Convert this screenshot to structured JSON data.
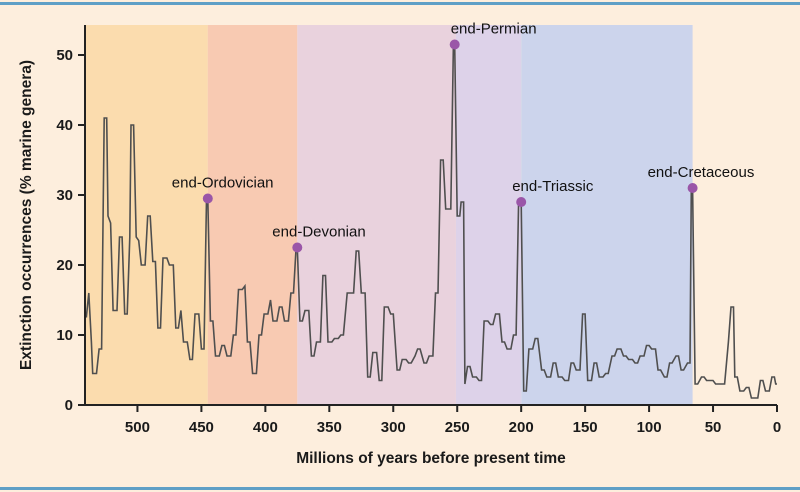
{
  "figure": {
    "background_color": "#fdeedd",
    "border_color": "#5f9fc6"
  },
  "chart_data": {
    "type": "line",
    "title": "",
    "xlabel": "Millions of years before present time",
    "ylabel": "Extinction occurrences (% marine genera)",
    "x_axis": {
      "min": 0,
      "max": 541,
      "reversed": true,
      "ticks": [
        500,
        450,
        400,
        350,
        300,
        250,
        200,
        150,
        100,
        50,
        0
      ]
    },
    "y_axis": {
      "min": 0,
      "max": 54,
      "ticks": [
        0,
        10,
        20,
        30,
        40,
        50
      ]
    },
    "grid": false,
    "legend": "none",
    "line_color": "#4f4f4f",
    "dot_color": "#9a56a8",
    "bands": [
      {
        "name": "cambrian-ordovician",
        "from": 541,
        "to": 445,
        "color": "#fbdcae"
      },
      {
        "name": "silurian-devonian",
        "from": 445,
        "to": 375,
        "color": "#f8cab2"
      },
      {
        "name": "carboniferous-permian",
        "from": 375,
        "to": 251,
        "color": "#e9d2dd"
      },
      {
        "name": "triassic",
        "from": 251,
        "to": 200,
        "color": "#ddd2e9"
      },
      {
        "name": "jurassic-cretaceous",
        "from": 200,
        "to": 66,
        "color": "#ccd4ec"
      }
    ],
    "peaks": [
      {
        "label": "end-Ordovician",
        "ma": 445,
        "pct": 29.5,
        "label_dx": -36,
        "label_dy": -11
      },
      {
        "label": "end-Devonian",
        "ma": 375,
        "pct": 22.5,
        "label_dx": -25,
        "label_dy": -11
      },
      {
        "label": "end-Permian",
        "ma": 252,
        "pct": 51.5,
        "label_dx": -4,
        "label_dy": -11
      },
      {
        "label": "end-Triassic",
        "ma": 200,
        "pct": 29,
        "label_dx": -9,
        "label_dy": -11
      },
      {
        "label": "end-Cretaceous",
        "ma": 66,
        "pct": 31,
        "label_dx": -45,
        "label_dy": -11
      }
    ],
    "series": [
      [
        540,
        12.5
      ],
      [
        538,
        16
      ],
      [
        536,
        9
      ],
      [
        535,
        4.5
      ],
      [
        532,
        4.5
      ],
      [
        530,
        8
      ],
      [
        528,
        8
      ],
      [
        526,
        41
      ],
      [
        524,
        41
      ],
      [
        523,
        27
      ],
      [
        521,
        26
      ],
      [
        519,
        13.5
      ],
      [
        516,
        13.5
      ],
      [
        514,
        24
      ],
      [
        512,
        24
      ],
      [
        510,
        13
      ],
      [
        508,
        13
      ],
      [
        506,
        24
      ],
      [
        505,
        40
      ],
      [
        503,
        40
      ],
      [
        501,
        24
      ],
      [
        499,
        23.5
      ],
      [
        497,
        20
      ],
      [
        494,
        20
      ],
      [
        492,
        27
      ],
      [
        490,
        27
      ],
      [
        488,
        20.5
      ],
      [
        486,
        20.5
      ],
      [
        484,
        11
      ],
      [
        482,
        11
      ],
      [
        480,
        21
      ],
      [
        477,
        21
      ],
      [
        475,
        20
      ],
      [
        472,
        20
      ],
      [
        470,
        11
      ],
      [
        468,
        11
      ],
      [
        466,
        13.5
      ],
      [
        464,
        9
      ],
      [
        461,
        9
      ],
      [
        459,
        6.5
      ],
      [
        457,
        6.5
      ],
      [
        455,
        13
      ],
      [
        452,
        13
      ],
      [
        450,
        8
      ],
      [
        448,
        8
      ],
      [
        446,
        29.5
      ],
      [
        445,
        29.5
      ],
      [
        443,
        12
      ],
      [
        441,
        12
      ],
      [
        439,
        7
      ],
      [
        436,
        7
      ],
      [
        434,
        8.5
      ],
      [
        432,
        8.5
      ],
      [
        430,
        7
      ],
      [
        427,
        7
      ],
      [
        425,
        10
      ],
      [
        423,
        10
      ],
      [
        421,
        16.5
      ],
      [
        418,
        16.5
      ],
      [
        416,
        17
      ],
      [
        414,
        9
      ],
      [
        412,
        9
      ],
      [
        410,
        4.5
      ],
      [
        407,
        4.5
      ],
      [
        405,
        10
      ],
      [
        403,
        10
      ],
      [
        401,
        13
      ],
      [
        398,
        13
      ],
      [
        396,
        15
      ],
      [
        394,
        12
      ],
      [
        391,
        12
      ],
      [
        389,
        14
      ],
      [
        387,
        14
      ],
      [
        385,
        12
      ],
      [
        382,
        12
      ],
      [
        380,
        16
      ],
      [
        378,
        16
      ],
      [
        376,
        22.5
      ],
      [
        375,
        22.5
      ],
      [
        373,
        12
      ],
      [
        371,
        12
      ],
      [
        369,
        13.5
      ],
      [
        366,
        13.5
      ],
      [
        364,
        7
      ],
      [
        362,
        7
      ],
      [
        360,
        9
      ],
      [
        357,
        9
      ],
      [
        355,
        18.5
      ],
      [
        353,
        18.5
      ],
      [
        351,
        9
      ],
      [
        348,
        9
      ],
      [
        346,
        9.5
      ],
      [
        343,
        9.5
      ],
      [
        341,
        10
      ],
      [
        339,
        10
      ],
      [
        336,
        16
      ],
      [
        334,
        16
      ],
      [
        331,
        16
      ],
      [
        329,
        22
      ],
      [
        327,
        22
      ],
      [
        325,
        16
      ],
      [
        322,
        16
      ],
      [
        320,
        4
      ],
      [
        318,
        4
      ],
      [
        316,
        7.5
      ],
      [
        313,
        7.5
      ],
      [
        311,
        3.5
      ],
      [
        309,
        3.5
      ],
      [
        307,
        14
      ],
      [
        304,
        14
      ],
      [
        302,
        13
      ],
      [
        300,
        13
      ],
      [
        297,
        5
      ],
      [
        295,
        5
      ],
      [
        293,
        6.5
      ],
      [
        290,
        6.5
      ],
      [
        288,
        6
      ],
      [
        286,
        6
      ],
      [
        283,
        7
      ],
      [
        281,
        8
      ],
      [
        279,
        8
      ],
      [
        276,
        6
      ],
      [
        274,
        6
      ],
      [
        272,
        7
      ],
      [
        269,
        7
      ],
      [
        267,
        16
      ],
      [
        265,
        16
      ],
      [
        263,
        35
      ],
      [
        261,
        35
      ],
      [
        259,
        28
      ],
      [
        257,
        28
      ],
      [
        255,
        28
      ],
      [
        253,
        51.5
      ],
      [
        252,
        51.5
      ],
      [
        250,
        27
      ],
      [
        248,
        27
      ],
      [
        247,
        29
      ],
      [
        245,
        29
      ],
      [
        244,
        3
      ],
      [
        242,
        5.5
      ],
      [
        240,
        5.5
      ],
      [
        238,
        4
      ],
      [
        235,
        4
      ],
      [
        233,
        3.5
      ],
      [
        231,
        3.5
      ],
      [
        229,
        12
      ],
      [
        226,
        12
      ],
      [
        224,
        11.5
      ],
      [
        222,
        11.5
      ],
      [
        220,
        13
      ],
      [
        217,
        13
      ],
      [
        215,
        9
      ],
      [
        213,
        9
      ],
      [
        211,
        8
      ],
      [
        208,
        8
      ],
      [
        206,
        10
      ],
      [
        204,
        10
      ],
      [
        202,
        29
      ],
      [
        200,
        29
      ],
      [
        198,
        2
      ],
      [
        196,
        2
      ],
      [
        194,
        8
      ],
      [
        191,
        8
      ],
      [
        189,
        9.5
      ],
      [
        187,
        9.5
      ],
      [
        184,
        5
      ],
      [
        182,
        5
      ],
      [
        180,
        4
      ],
      [
        177,
        4
      ],
      [
        175,
        6
      ],
      [
        173,
        6
      ],
      [
        171,
        4
      ],
      [
        168,
        4
      ],
      [
        166,
        3.5
      ],
      [
        163,
        3.5
      ],
      [
        161,
        6
      ],
      [
        159,
        6
      ],
      [
        157,
        5
      ],
      [
        154,
        5
      ],
      [
        152,
        13
      ],
      [
        150,
        13
      ],
      [
        148,
        3.5
      ],
      [
        145,
        3.5
      ],
      [
        143,
        6
      ],
      [
        141,
        6
      ],
      [
        139,
        4
      ],
      [
        136,
        4
      ],
      [
        134,
        4.5
      ],
      [
        132,
        4.5
      ],
      [
        129,
        7
      ],
      [
        127,
        7
      ],
      [
        125,
        8
      ],
      [
        122,
        8
      ],
      [
        120,
        7
      ],
      [
        118,
        7
      ],
      [
        116,
        6.5
      ],
      [
        113,
        6.5
      ],
      [
        111,
        6
      ],
      [
        109,
        6
      ],
      [
        107,
        7
      ],
      [
        104,
        7
      ],
      [
        102,
        8.5
      ],
      [
        100,
        8.5
      ],
      [
        98,
        8
      ],
      [
        95,
        8
      ],
      [
        93,
        5
      ],
      [
        91,
        5
      ],
      [
        88,
        4
      ],
      [
        86,
        4
      ],
      [
        84,
        6
      ],
      [
        82,
        6
      ],
      [
        79,
        7
      ],
      [
        77,
        7
      ],
      [
        75,
        5
      ],
      [
        73,
        5
      ],
      [
        70,
        6
      ],
      [
        68,
        6
      ],
      [
        67,
        31
      ],
      [
        66,
        31
      ],
      [
        64,
        3
      ],
      [
        62,
        3
      ],
      [
        59,
        4
      ],
      [
        57,
        4
      ],
      [
        55,
        3.5
      ],
      [
        52,
        3.5
      ],
      [
        50,
        3.5
      ],
      [
        48,
        3
      ],
      [
        45,
        3
      ],
      [
        43,
        3
      ],
      [
        41,
        3
      ],
      [
        38,
        9
      ],
      [
        36,
        14
      ],
      [
        34,
        14
      ],
      [
        33,
        4
      ],
      [
        31,
        4
      ],
      [
        29,
        2
      ],
      [
        26,
        2
      ],
      [
        24,
        2.5
      ],
      [
        22,
        2.5
      ],
      [
        20,
        1
      ],
      [
        17,
        1
      ],
      [
        15,
        1
      ],
      [
        13,
        3.5
      ],
      [
        11,
        3.5
      ],
      [
        9,
        2
      ],
      [
        6,
        2
      ],
      [
        4,
        4
      ],
      [
        2,
        4
      ],
      [
        1,
        3
      ],
      [
        0,
        3
      ]
    ]
  }
}
